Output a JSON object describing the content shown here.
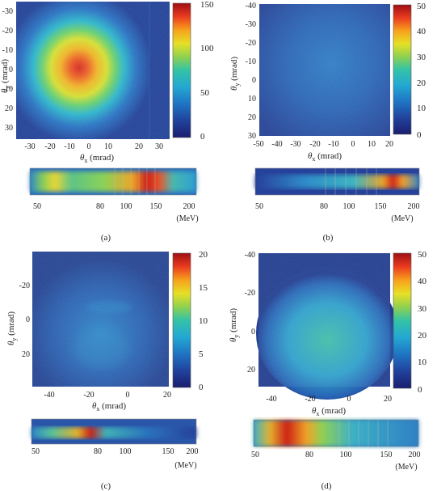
{
  "colors": {
    "colormap": [
      "#1a1f6e",
      "#21409a",
      "#1f74c4",
      "#23a9d2",
      "#33c3a6",
      "#8fd14f",
      "#e6e026",
      "#f7a11c",
      "#ea3b1f",
      "#9e0f14"
    ],
    "background": "#1c2b7a"
  },
  "panels": [
    {
      "label": "(a)",
      "map": {
        "kind": "beam-spot",
        "xlabel_main": "θ",
        "xlabel_sub": "x",
        "xlabel_unit": " (mrad)",
        "ylabel_main": "θ",
        "ylabel_sub": "y",
        "ylabel_unit": " (mrad)",
        "xticks": [
          "-30",
          "-20",
          "-10",
          "0",
          "10",
          "20",
          "30"
        ],
        "yticks": [
          "-30",
          "-20",
          "-10",
          "0",
          "10",
          "20",
          "30"
        ]
      },
      "colorbar": {
        "ticks": [
          "150",
          "100",
          "50",
          "0"
        ],
        "max": 150
      },
      "spectrum": {
        "ticks": [
          "50",
          "80",
          "100",
          "150",
          "200"
        ],
        "unit": "(MeV)"
      }
    },
    {
      "label": "(b)",
      "map": {
        "kind": "diffuse",
        "xlabel_main": "θ",
        "xlabel_sub": "x",
        "xlabel_unit": " (mrad)",
        "ylabel_main": "θ",
        "ylabel_sub": "y",
        "ylabel_unit": " (mrad)",
        "xticks": [
          "-50",
          "-40",
          "-30",
          "-20",
          "-10",
          "0",
          "10",
          "20"
        ],
        "yticks": [
          "-40",
          "-30",
          "-20",
          "-10",
          "0",
          "10",
          "20",
          "30"
        ]
      },
      "colorbar": {
        "ticks": [
          "50",
          "40",
          "30",
          "20",
          "10",
          "0"
        ],
        "max": 50
      },
      "spectrum": {
        "ticks": [
          "50",
          "80",
          "100",
          "150",
          "200"
        ],
        "unit": "(MeV)"
      }
    },
    {
      "label": "(c)",
      "map": {
        "kind": "faint",
        "xlabel_main": "θ",
        "xlabel_sub": "x",
        "xlabel_unit": " (mrad)",
        "ylabel_main": "θ",
        "ylabel_sub": "y",
        "ylabel_unit": " (mrad)",
        "xticks": [
          "-40",
          "-20",
          "0",
          "20"
        ],
        "yticks": [
          "-20",
          "0",
          "20"
        ]
      },
      "colorbar": {
        "ticks": [
          "20",
          "15",
          "10",
          "5",
          "0"
        ],
        "max": 20
      },
      "spectrum": {
        "ticks": [
          "50",
          "80",
          "100",
          "150",
          "200"
        ],
        "unit": "(MeV)"
      }
    },
    {
      "label": "(d)",
      "map": {
        "kind": "large-spot",
        "xlabel_main": "θ",
        "xlabel_sub": "x",
        "xlabel_unit": " (mrad)",
        "ylabel_main": "θ",
        "ylabel_sub": "y",
        "ylabel_unit": " (mrad)",
        "xticks": [
          "-40",
          "-20",
          "0",
          "20"
        ],
        "yticks": [
          "-40",
          "-20",
          "0",
          "20"
        ]
      },
      "colorbar": {
        "ticks": [
          "50",
          "40",
          "30",
          "20",
          "10",
          "0"
        ],
        "max": 50
      },
      "spectrum": {
        "ticks": [
          "50",
          "80",
          "100",
          "150",
          "200"
        ],
        "unit": "(MeV)"
      }
    }
  ]
}
